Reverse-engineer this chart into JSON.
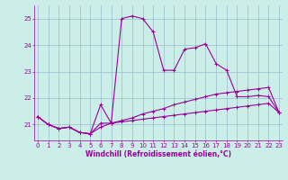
{
  "xlabel": "Windchill (Refroidissement éolien,°C)",
  "background_color": "#cceee8",
  "grid_color": "#99bbcc",
  "line_color": "#990099",
  "x_ticks": [
    0,
    1,
    2,
    3,
    4,
    5,
    6,
    7,
    8,
    9,
    10,
    11,
    12,
    13,
    14,
    15,
    16,
    17,
    18,
    19,
    20,
    21,
    22,
    23
  ],
  "y_ticks": [
    21,
    22,
    23,
    24,
    25
  ],
  "ylim": [
    20.4,
    25.5
  ],
  "xlim": [
    -0.3,
    23.3
  ],
  "upper_line": [
    21.3,
    21.0,
    20.85,
    20.9,
    20.7,
    20.65,
    21.75,
    21.05,
    25.0,
    25.1,
    25.0,
    24.5,
    23.05,
    23.05,
    23.85,
    23.9,
    24.05,
    23.3,
    23.05,
    22.05,
    22.05,
    22.1,
    22.05,
    21.45
  ],
  "middle_line": [
    21.3,
    21.0,
    20.85,
    20.9,
    20.7,
    20.65,
    21.05,
    21.05,
    21.15,
    21.25,
    21.4,
    21.5,
    21.6,
    21.75,
    21.85,
    21.95,
    22.05,
    22.15,
    22.2,
    22.25,
    22.3,
    22.35,
    22.4,
    21.45
  ],
  "lower_line": [
    21.3,
    21.0,
    20.85,
    20.9,
    20.7,
    20.65,
    20.9,
    21.05,
    21.1,
    21.15,
    21.2,
    21.25,
    21.3,
    21.35,
    21.4,
    21.45,
    21.5,
    21.55,
    21.6,
    21.65,
    21.7,
    21.75,
    21.8,
    21.45
  ],
  "marker_size": 2.5,
  "line_width": 0.8,
  "tick_fontsize": 5.0,
  "label_fontsize": 5.5
}
